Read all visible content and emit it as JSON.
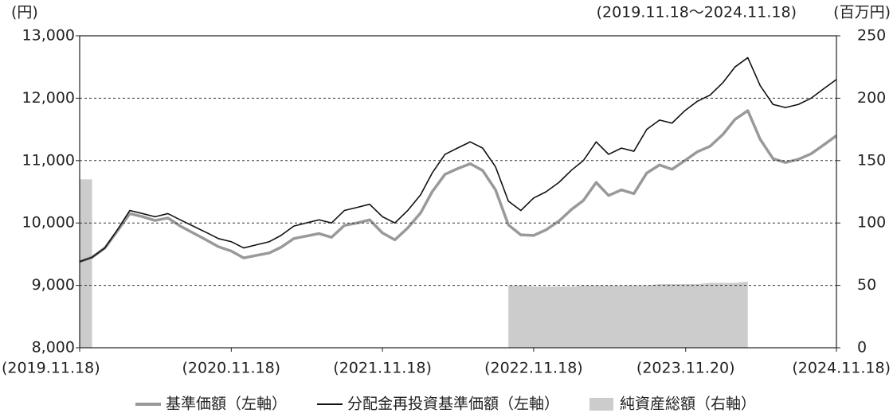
{
  "chart_data": {
    "type": "line",
    "y_label": "(円)",
    "y2_label": "(百万円)",
    "subtitle": "(2019.11.18～2024.11.18)",
    "x": [
      "2019.11.18",
      "2019.12.18",
      "2020.01.18",
      "2020.02.18",
      "2020.03.18",
      "2020.04.18",
      "2020.05.18",
      "2020.06.18",
      "2020.07.18",
      "2020.08.18",
      "2020.09.18",
      "2020.10.18",
      "2020.11.18",
      "2020.12.18",
      "2021.01.18",
      "2021.02.18",
      "2021.03.18",
      "2021.04.18",
      "2021.05.18",
      "2021.06.18",
      "2021.07.18",
      "2021.08.18",
      "2021.09.18",
      "2021.10.18",
      "2021.11.18",
      "2021.12.18",
      "2022.01.18",
      "2022.02.18",
      "2022.03.18",
      "2022.04.18",
      "2022.05.18",
      "2022.06.18",
      "2022.07.18",
      "2022.08.18",
      "2022.09.18",
      "2022.10.18",
      "2022.11.18",
      "2022.12.18",
      "2023.01.18",
      "2023.02.18",
      "2023.03.18",
      "2023.04.18",
      "2023.05.18",
      "2023.06.18",
      "2023.07.18",
      "2023.08.18",
      "2023.09.18",
      "2023.10.18",
      "2023.11.18",
      "2023.12.18",
      "2024.01.18",
      "2024.02.18",
      "2024.03.18",
      "2024.04.18",
      "2024.05.18",
      "2024.06.18",
      "2024.07.18",
      "2024.08.18",
      "2024.09.18",
      "2024.10.18",
      "2024.11.18"
    ],
    "series": [
      {
        "name": "純資産総額（右軸）",
        "type": "area",
        "axis": "y2",
        "color": "#cccccc",
        "values": [
          135,
          135,
          null,
          null,
          null,
          null,
          null,
          null,
          null,
          null,
          null,
          null,
          null,
          null,
          null,
          null,
          null,
          null,
          null,
          null,
          null,
          null,
          null,
          null,
          null,
          null,
          null,
          null,
          null,
          null,
          null,
          null,
          null,
          null,
          50,
          50,
          49,
          49,
          49,
          49,
          50,
          50,
          50,
          50,
          50,
          50,
          51,
          51,
          51,
          51,
          52,
          52,
          52,
          53,
          null,
          null,
          null,
          null,
          null,
          null,
          null
        ]
      },
      {
        "name": "基準価額（左軸）",
        "type": "line",
        "color": "#999999",
        "width": 3.5,
        "values": [
          9380,
          9450,
          9600,
          9880,
          10150,
          10100,
          10040,
          10080,
          9950,
          9840,
          9730,
          9620,
          9550,
          9440,
          9480,
          9520,
          9610,
          9750,
          9790,
          9830,
          9770,
          9960,
          10000,
          10050,
          9840,
          9730,
          9920,
          10160,
          10500,
          10780,
          10870,
          10950,
          10840,
          10530,
          9970,
          9810,
          9800,
          9890,
          10030,
          10220,
          10360,
          10650,
          10440,
          10530,
          10470,
          10800,
          10930,
          10860,
          11000,
          11140,
          11230,
          11420,
          11660,
          11800,
          11340,
          11030,
          10970,
          11020,
          11110,
          11250,
          11400
        ]
      },
      {
        "name": "分配金再投資基準価額（左軸）",
        "type": "line",
        "color": "#111111",
        "width": 1.6,
        "values": [
          9380,
          9450,
          9600,
          9900,
          10200,
          10150,
          10100,
          10150,
          10050,
          9950,
          9850,
          9750,
          9700,
          9600,
          9650,
          9700,
          9800,
          9950,
          10000,
          10050,
          10000,
          10200,
          10250,
          10300,
          10100,
          10000,
          10200,
          10450,
          10800,
          11100,
          11200,
          11300,
          11200,
          10900,
          10350,
          10200,
          10400,
          10500,
          10650,
          10850,
          11000,
          11300,
          11100,
          11200,
          11150,
          11500,
          11650,
          11600,
          11800,
          11950,
          12050,
          12250,
          12500,
          12650,
          12200,
          11900,
          11850,
          11900,
          12000,
          12150,
          12300
        ]
      }
    ],
    "ylim": [
      8000,
      13000
    ],
    "yticks": [
      {
        "value": 8000,
        "label": "8,000"
      },
      {
        "value": 9000,
        "label": "9,000"
      },
      {
        "value": 10000,
        "label": "10,000"
      },
      {
        "value": 11000,
        "label": "11,000"
      },
      {
        "value": 12000,
        "label": "12,000"
      },
      {
        "value": 13000,
        "label": "13,000"
      }
    ],
    "y2lim": [
      0,
      250
    ],
    "y2ticks": [
      0,
      50,
      100,
      150,
      200,
      250
    ],
    "xticks": [
      {
        "value": "2019.11.18",
        "label": "(2019.11.18)"
      },
      {
        "value": "2020.11.18",
        "label": "(2020.11.18)"
      },
      {
        "value": "2021.11.18",
        "label": "(2021.11.18)"
      },
      {
        "value": "2022.11.18",
        "label": "(2022.11.18)"
      },
      {
        "value": "2023.11.20",
        "label": "(2023.11.20)"
      },
      {
        "value": "2024.11.18",
        "label": "(2024.11.18)"
      }
    ],
    "grid": true
  }
}
